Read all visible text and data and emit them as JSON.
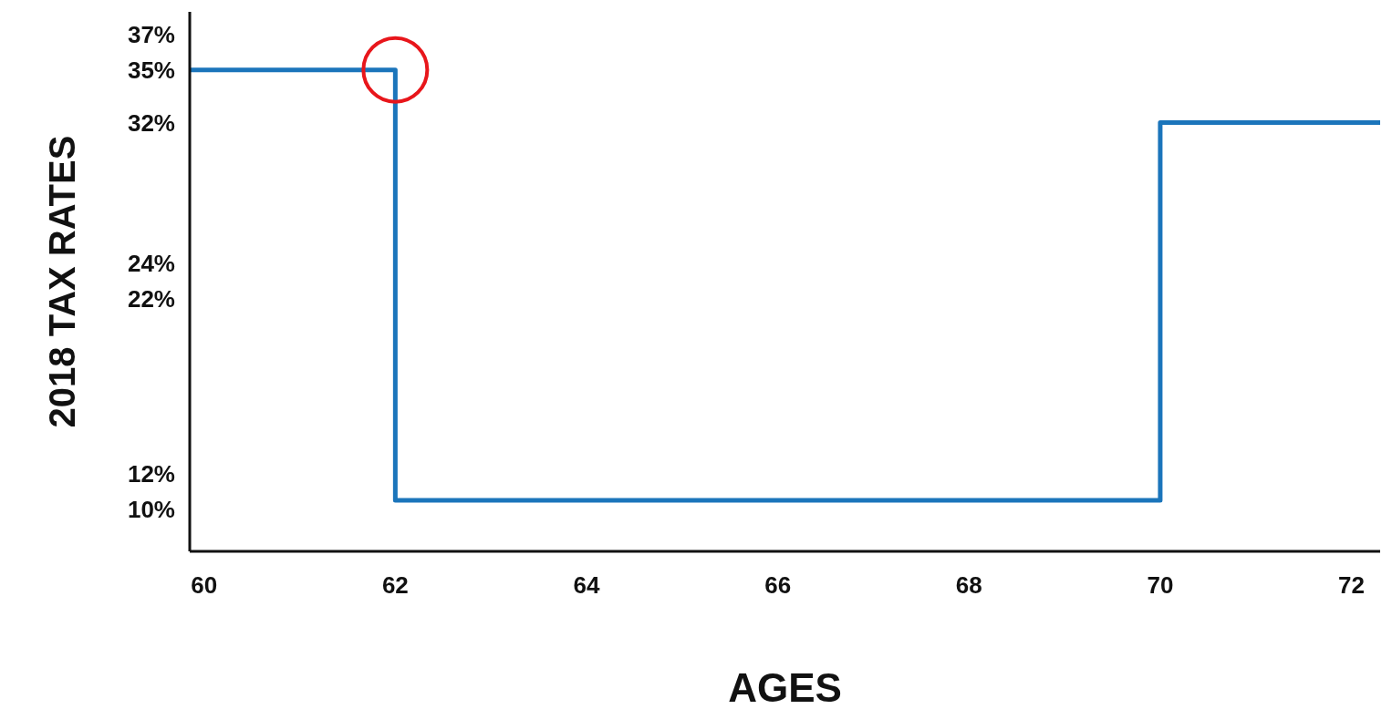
{
  "chart_data": {
    "type": "step",
    "xlabel": "AGES",
    "ylabel": "2018 TAX RATES",
    "x": [
      59.85,
      62,
      70,
      72.3
    ],
    "series": [
      {
        "color": "#1b75bb",
        "values": [
          35,
          10.5,
          32,
          32
        ]
      }
    ],
    "xlim": [
      59.85,
      72.3
    ],
    "xticks": [
      60,
      62,
      64,
      66,
      68,
      70,
      72
    ],
    "ylim": [
      7.6,
      38.3
    ],
    "yticks": [
      {
        "value": 10,
        "label": "10%"
      },
      {
        "value": 12,
        "label": "12%"
      },
      {
        "value": 22,
        "label": "22%"
      },
      {
        "value": 24,
        "label": "24%"
      },
      {
        "value": 32,
        "label": "32%"
      },
      {
        "value": 35,
        "label": "35%"
      },
      {
        "value": 37,
        "label": "37%"
      }
    ],
    "grid": false
  }
}
